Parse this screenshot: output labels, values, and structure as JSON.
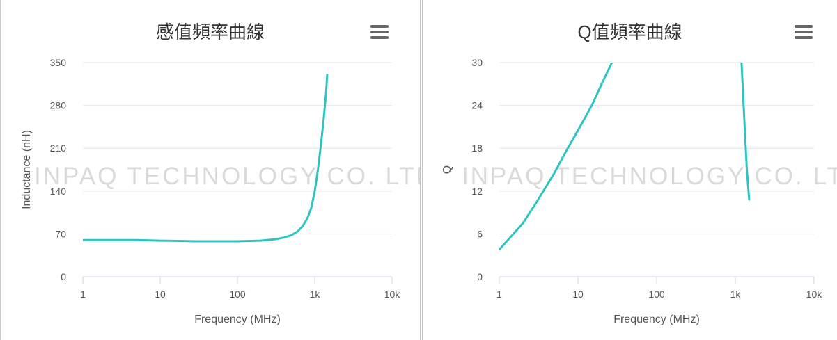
{
  "watermark": "INPAQ TECHNOLOGY CO. LTD.",
  "colors": {
    "series": "#2ec4c4",
    "grid": "#e6e6e6",
    "axis": "#ccd6eb"
  },
  "chart_data": [
    {
      "type": "line",
      "title": "感值頻率曲線",
      "xlabel": "Frequency (MHz)",
      "ylabel": "Inductance (nH)",
      "xscale": "log",
      "xlim": [
        1,
        10000
      ],
      "ylim": [
        0,
        350
      ],
      "xticks": [
        "1",
        "10",
        "100",
        "1k",
        "10k"
      ],
      "yticks": [
        "0",
        "70",
        "140",
        "210",
        "280",
        "350"
      ],
      "grid": true,
      "series": [
        {
          "x": [
            1,
            5,
            10,
            30,
            100,
            200,
            300,
            400,
            500,
            600,
            700,
            800,
            900,
            1000,
            1100,
            1200,
            1300,
            1400,
            1450
          ],
          "y": [
            60,
            60,
            59,
            58,
            58,
            59,
            61,
            64,
            68,
            74,
            83,
            95,
            112,
            140,
            175,
            215,
            255,
            300,
            330
          ]
        }
      ]
    },
    {
      "type": "line",
      "title": "Q值頻率曲線",
      "xlabel": "Frequency (MHz)",
      "ylabel": "Q",
      "xscale": "log",
      "xlim": [
        1,
        10000
      ],
      "ylim": [
        0,
        30
      ],
      "xticks": [
        "1",
        "10",
        "100",
        "1k",
        "10k"
      ],
      "yticks": [
        "0",
        "6",
        "12",
        "18",
        "24",
        "30"
      ],
      "grid": true,
      "series": [
        {
          "x": [
            1,
            2,
            3,
            5,
            7,
            10,
            15,
            20,
            27,
            null,
            1200,
            1300,
            1400,
            1500
          ],
          "y": [
            3.8,
            7.5,
            10.5,
            14.5,
            17.5,
            20.5,
            24,
            27,
            30,
            null,
            30,
            22,
            15,
            10.8
          ]
        }
      ]
    }
  ]
}
